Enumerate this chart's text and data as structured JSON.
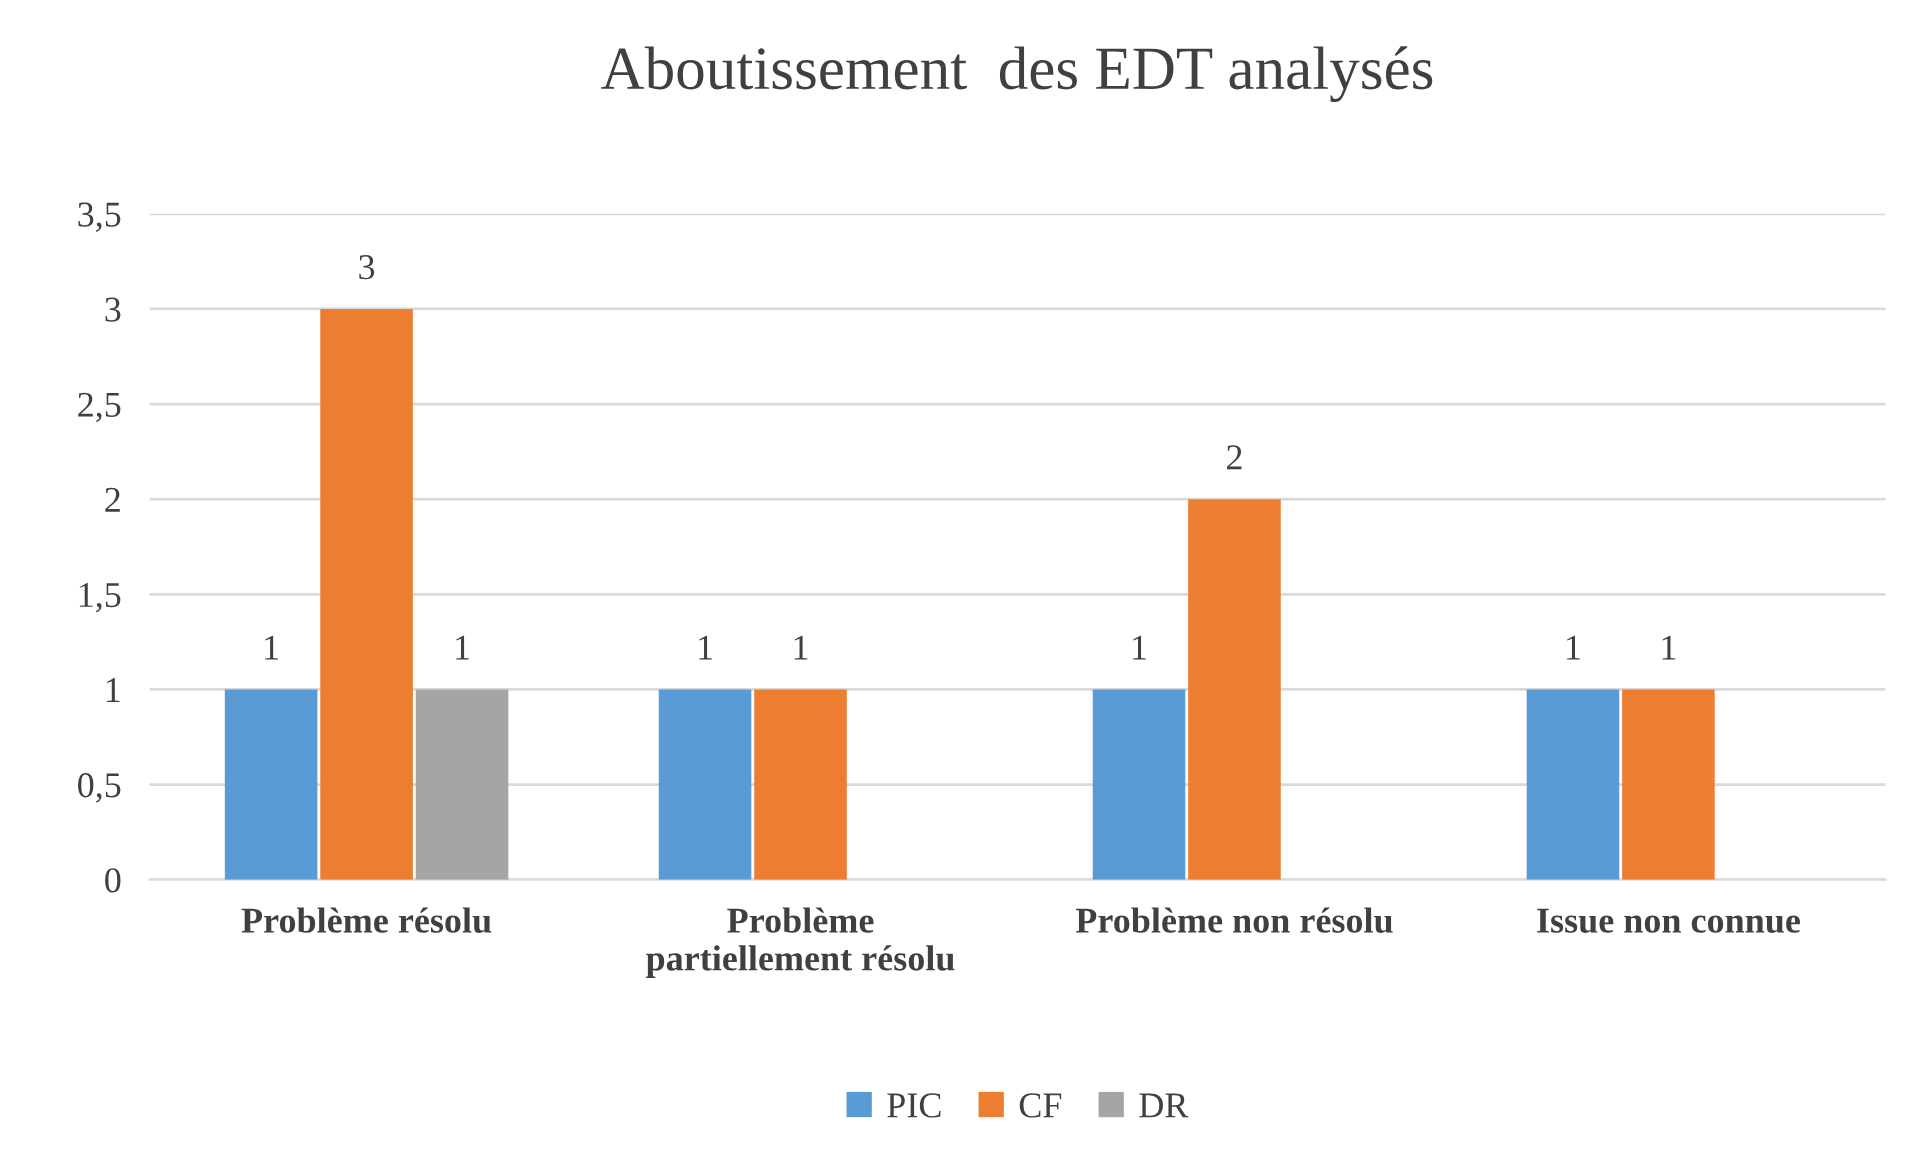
{
  "chart_data": {
    "type": "bar",
    "title": "Aboutissement  des EDT analysés",
    "categories": [
      "Problème résolu",
      "Problème\npartiellement résolu",
      "Problème non résolu",
      "Issue non connue"
    ],
    "series": [
      {
        "name": "PIC",
        "color": "#5b9bd5",
        "values": [
          1,
          1,
          1,
          1
        ]
      },
      {
        "name": "CF",
        "color": "#ed7d31",
        "values": [
          3,
          1,
          2,
          1
        ]
      },
      {
        "name": "DR",
        "color": "#a5a5a5",
        "values": [
          1,
          null,
          null,
          null
        ]
      }
    ],
    "ylim": [
      0,
      3.5
    ],
    "yticks": [
      0,
      {
        "value": 0.5,
        "label": "0,5"
      },
      1,
      {
        "value": 1.5,
        "label": "1,5"
      },
      2,
      {
        "value": 2.5,
        "label": "2,5"
      },
      3,
      {
        "value": 3.5,
        "label": "3,5"
      }
    ],
    "grid": "y",
    "legend": "bottom",
    "data_labels": true
  }
}
